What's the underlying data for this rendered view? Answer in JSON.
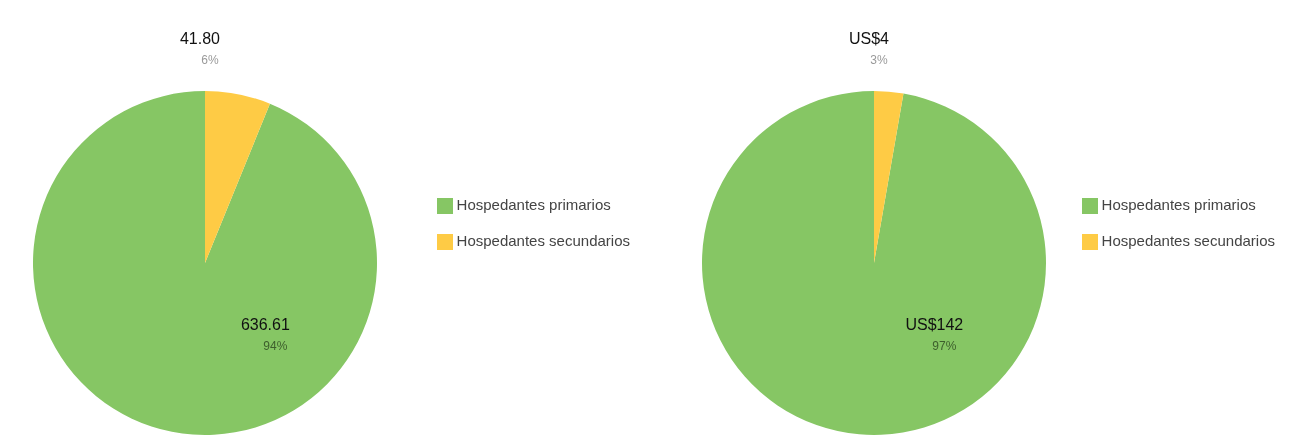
{
  "chart_data": [
    {
      "type": "pie",
      "categories": [
        "Hospedantes primarios",
        "Hospedantes secundarios"
      ],
      "values": [
        636.61,
        41.8
      ],
      "colors": [
        "#86c664",
        "#fecb45"
      ],
      "value_labels": [
        "636.61",
        "41.80"
      ],
      "annotations": [
        "94%",
        "6%"
      ],
      "legend": "right"
    },
    {
      "type": "pie",
      "categories": [
        "Hospedantes primarios",
        "Hospedantes secundarios"
      ],
      "values": [
        142,
        4
      ],
      "colors": [
        "#86c664",
        "#fecb45"
      ],
      "value_labels": [
        "US$142",
        "US$4"
      ],
      "annotations": [
        "97%",
        "3%"
      ],
      "legend": "right"
    }
  ]
}
